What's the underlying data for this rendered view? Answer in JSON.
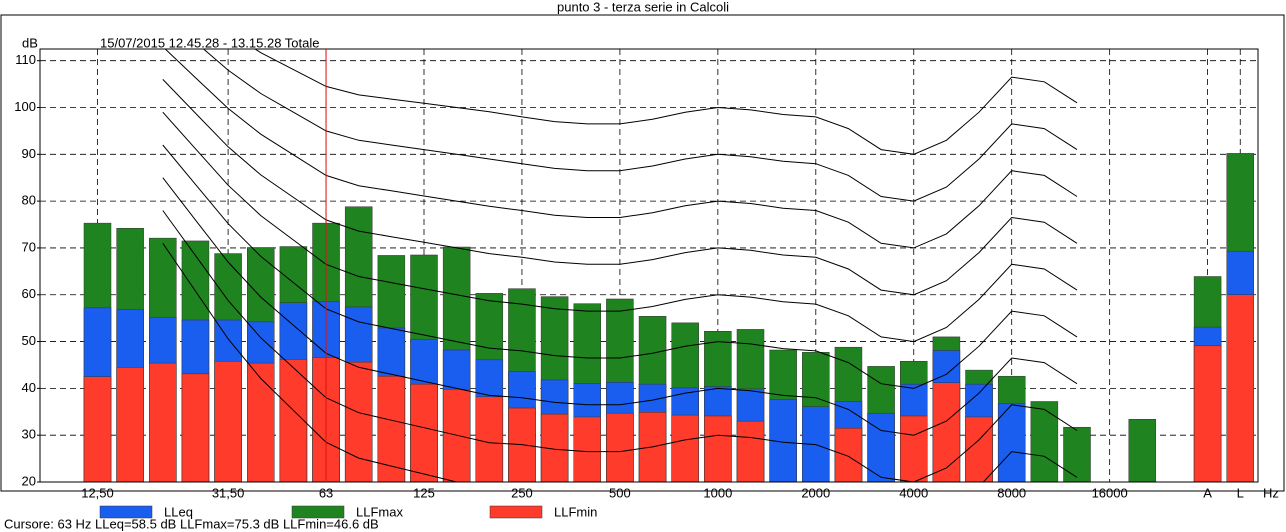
{
  "chart_data": {
    "type": "bar",
    "title": "punto 3 - terza serie in Calcoli",
    "subtitle": "15/07/2015 12.45.28 - 13.15.28  Totale",
    "y_label": "dB",
    "x_label": "Hz",
    "footer": "Cursore: 63 Hz  LLeq=58.5 dB  LLFmax=75.3 dB  LLFmin=46.6 dB",
    "cursor_index": 7,
    "categories": [
      "12,50",
      null,
      null,
      null,
      "31,50",
      null,
      null,
      "63",
      null,
      null,
      "125",
      null,
      null,
      "250",
      null,
      null,
      "500",
      null,
      null,
      "1000",
      null,
      null,
      "2000",
      null,
      null,
      "4000",
      null,
      null,
      "8000",
      null,
      null,
      "16000",
      null,
      null,
      "A",
      "L"
    ],
    "series": [
      {
        "name": "LLeq",
        "color": "#1a5ef0",
        "values": [
          57.2,
          56.8,
          55.2,
          54.6,
          54.6,
          54.2,
          58.3,
          58.5,
          57.4,
          52.9,
          50.5,
          48.2,
          46.1,
          43.6,
          41.8,
          41.0,
          41.3,
          40.9,
          40.1,
          40.4,
          39.9,
          37.6,
          36.1,
          37.2,
          34.7,
          40.9,
          48.1,
          40.9,
          36.7,
          null,
          null,
          null,
          null,
          null,
          53.1,
          69.3
        ]
      },
      {
        "name": "LLFmax",
        "color": "#1f841f",
        "values": [
          75.3,
          74.2,
          72.1,
          71.5,
          68.8,
          70.1,
          70.3,
          75.3,
          78.8,
          68.4,
          68.5,
          70.2,
          60.3,
          61.3,
          59.6,
          58.1,
          59.1,
          55.4,
          54.0,
          52.2,
          52.6,
          48.2,
          47.7,
          48.8,
          44.7,
          45.8,
          51.0,
          43.9,
          42.6,
          37.2,
          31.7,
          null,
          33.4,
          null,
          63.9,
          90.2
        ]
      },
      {
        "name": "LLFmin",
        "color": "#ff3b2b",
        "values": [
          42.5,
          44.5,
          45.4,
          43.1,
          45.8,
          45.4,
          46.2,
          46.6,
          45.6,
          42.6,
          40.9,
          39.8,
          38.2,
          35.8,
          34.5,
          33.9,
          34.7,
          34.9,
          34.3,
          34.1,
          33.0,
          null,
          null,
          31.5,
          null,
          34.1,
          41.2,
          33.9,
          null,
          null,
          null,
          null,
          null,
          null,
          49.1,
          60.0
        ]
      }
    ],
    "contours": [
      [
        null,
        null,
        71,
        60.8,
        50.6,
        42.1,
        35.3,
        28.5,
        25.1,
        23.4,
        21.7,
        20,
        18.3,
        18,
        17,
        16.5,
        16.5,
        17.5,
        19,
        20,
        19.5,
        18.5,
        18,
        15.5,
        11,
        10,
        13,
        19,
        26.5,
        25.5,
        21,
        null,
        null,
        null,
        null,
        null
      ],
      [
        null,
        null,
        78,
        68.4,
        58.8,
        50.8,
        44.4,
        38,
        34.8,
        33.2,
        31.6,
        30,
        28.4,
        28,
        27,
        26.5,
        26.5,
        27.5,
        29,
        30,
        29.5,
        28.5,
        28,
        25.5,
        21,
        20,
        23,
        29,
        36.5,
        35.5,
        31,
        null,
        null,
        null,
        null,
        null
      ],
      [
        null,
        null,
        85,
        76,
        67,
        59.5,
        53.5,
        47.5,
        44.5,
        43,
        41.5,
        40,
        38.5,
        38,
        37,
        36.5,
        36.5,
        37.5,
        39,
        40,
        39.5,
        38.5,
        38,
        35.5,
        31,
        30,
        33,
        39,
        46.5,
        45.5,
        41,
        null,
        null,
        null,
        null,
        null
      ],
      [
        null,
        null,
        92,
        83.6,
        75.2,
        68.2,
        62.6,
        57,
        54.2,
        52.8,
        51.4,
        50,
        48.6,
        48,
        47,
        46.5,
        46.5,
        47.5,
        49,
        50,
        49.5,
        48.5,
        48,
        45.5,
        41,
        40,
        43,
        49,
        56.5,
        55.5,
        51,
        null,
        null,
        null,
        null,
        null
      ],
      [
        null,
        null,
        99,
        91.2,
        83.4,
        76.9,
        71.7,
        66.5,
        63.9,
        62.6,
        61.3,
        60,
        58.7,
        58,
        57,
        56.5,
        56.5,
        57.5,
        59,
        60,
        59.5,
        58.5,
        58,
        55.5,
        51,
        50,
        53,
        59,
        66.5,
        65.5,
        61,
        null,
        null,
        null,
        null,
        null
      ],
      [
        null,
        null,
        106,
        98.8,
        91.6,
        85.6,
        80.8,
        76,
        73.6,
        72.4,
        71.2,
        70,
        68.8,
        68,
        67,
        66.5,
        66.5,
        67.5,
        69,
        70,
        69.5,
        68.5,
        68,
        65.5,
        61,
        60,
        63,
        69,
        76.5,
        75.5,
        71,
        null,
        null,
        null,
        null,
        null
      ],
      [
        null,
        null,
        113,
        106.4,
        99.8,
        94.3,
        89.9,
        85.5,
        83.3,
        82.2,
        81.1,
        80,
        78.9,
        78,
        77,
        76.5,
        76.5,
        77.5,
        79,
        80,
        79.5,
        78.5,
        78,
        75.5,
        71,
        70,
        73,
        79,
        86.5,
        85.5,
        81,
        null,
        null,
        null,
        null,
        null
      ],
      [
        null,
        null,
        120,
        114,
        108,
        103,
        99,
        95,
        93,
        92,
        91,
        90,
        89,
        88,
        87,
        86.5,
        86.5,
        87.5,
        89,
        90,
        89.5,
        88.5,
        88,
        85.5,
        81,
        80,
        83,
        89,
        96.5,
        95.5,
        91,
        null,
        null,
        null,
        null,
        null
      ],
      [
        null,
        null,
        127,
        121.6,
        116.2,
        111.7,
        108.1,
        104.5,
        102.7,
        101.8,
        100.9,
        100,
        99.1,
        98,
        97,
        96.5,
        96.5,
        97.5,
        99,
        100,
        99.5,
        98.5,
        98,
        95.5,
        91,
        90,
        93,
        99,
        106.5,
        105.5,
        101,
        null,
        null,
        null,
        null,
        null
      ]
    ],
    "ylim": [
      20,
      112.5
    ],
    "yticks": [
      20,
      30,
      40,
      50,
      60,
      70,
      80,
      90,
      100,
      110
    ],
    "grid": true,
    "legend": "bottom"
  }
}
